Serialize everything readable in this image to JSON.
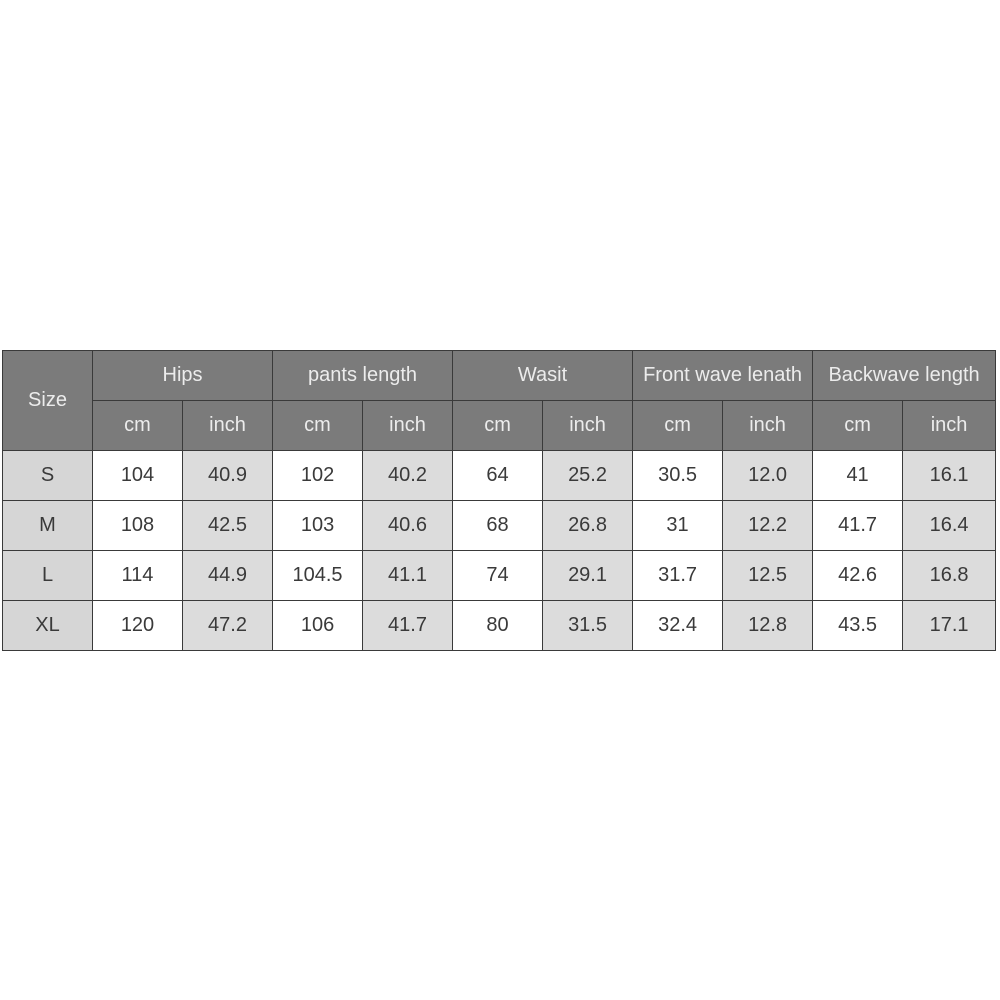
{
  "table": {
    "size_header": "Size",
    "groups": [
      "Hips",
      "pants length",
      "Wasit",
      "Front wave lenath",
      "Backwave length"
    ],
    "units": [
      "cm",
      "inch",
      "cm",
      "inch",
      "cm",
      "inch",
      "cm",
      "inch",
      "cm",
      "inch"
    ],
    "rows": [
      {
        "size": "S",
        "values": [
          "104",
          "40.9",
          "102",
          "40.2",
          "64",
          "25.2",
          "30.5",
          "12.0",
          "41",
          "16.1"
        ]
      },
      {
        "size": "M",
        "values": [
          "108",
          "42.5",
          "103",
          "40.6",
          "68",
          "26.8",
          "31",
          "12.2",
          "41.7",
          "16.4"
        ]
      },
      {
        "size": "L",
        "values": [
          "114",
          "44.9",
          "104.5",
          "41.1",
          "74",
          "29.1",
          "31.7",
          "12.5",
          "42.6",
          "16.8"
        ]
      },
      {
        "size": "XL",
        "values": [
          "120",
          "47.2",
          "106",
          "41.7",
          "80",
          "31.5",
          "32.4",
          "12.8",
          "43.5",
          "17.1"
        ]
      }
    ]
  },
  "colors": {
    "header_bg": "#7b7b7b",
    "header_text": "#ececec",
    "size_bg": "#d6d6d6",
    "inch_bg": "#dcdcdc",
    "cm_bg": "#ffffff"
  }
}
